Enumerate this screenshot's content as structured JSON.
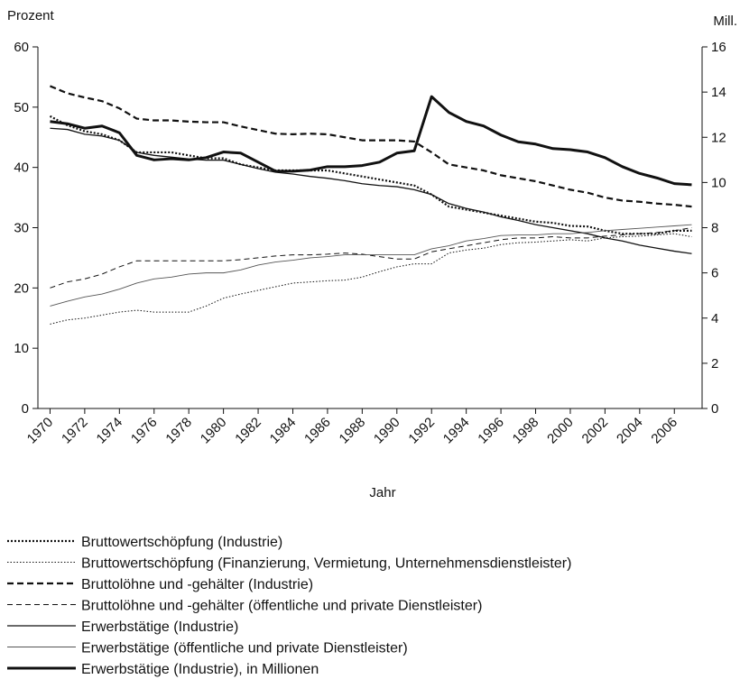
{
  "chart_data": {
    "type": "line",
    "y_label": "Prozent",
    "y2_label": "Mill.",
    "x_label": "Jahr",
    "x": [
      1970,
      1971,
      1972,
      1973,
      1974,
      1975,
      1976,
      1977,
      1978,
      1979,
      1980,
      1981,
      1982,
      1983,
      1984,
      1985,
      1986,
      1987,
      1988,
      1989,
      1990,
      1991,
      1992,
      1993,
      1994,
      1995,
      1996,
      1997,
      1998,
      1999,
      2000,
      2001,
      2002,
      2003,
      2004,
      2005,
      2006,
      2007
    ],
    "xlim": [
      1969.3,
      2007.6
    ],
    "xticks": [
      1970,
      1972,
      1974,
      1976,
      1978,
      1980,
      1982,
      1984,
      1986,
      1988,
      1990,
      1992,
      1994,
      1996,
      1998,
      2000,
      2002,
      2004,
      2006
    ],
    "ylim": [
      0,
      60
    ],
    "yticks": [
      0,
      10,
      20,
      30,
      40,
      50,
      60
    ],
    "y2lim": [
      0,
      16
    ],
    "y2ticks": [
      0,
      2,
      4,
      6,
      8,
      10,
      12,
      14,
      16
    ],
    "series": [
      {
        "name": "Bruttowertschöpfung (Industrie)",
        "color": "#111111",
        "style": "dotted-bold",
        "values": [
          48.5,
          47,
          46,
          45.5,
          44.5,
          42.5,
          42.5,
          42.5,
          42,
          41.5,
          41.5,
          40.5,
          40,
          39.5,
          39.5,
          39.5,
          39.5,
          39,
          38.5,
          38,
          37.5,
          37,
          35.5,
          33.5,
          33,
          32.5,
          32,
          31.5,
          31,
          30.8,
          30.3,
          30.2,
          29.5,
          29,
          29,
          29,
          29.5,
          29.5
        ]
      },
      {
        "name": "Bruttowertschöpfung (Finanzierung, Vermietung, Unternehmensdienstleister)",
        "color": "#111111",
        "style": "dotted",
        "values": [
          14,
          14.7,
          15,
          15.5,
          16,
          16.3,
          16,
          16,
          16,
          17,
          18.3,
          19,
          19.6,
          20.2,
          20.8,
          21,
          21.2,
          21.3,
          21.8,
          22.7,
          23.5,
          24,
          24,
          25.8,
          26.3,
          26.6,
          27.2,
          27.5,
          27.6,
          27.8,
          28,
          27.8,
          28.3,
          28.5,
          28.6,
          28.8,
          29,
          28.5
        ]
      },
      {
        "name": "Bruttolöhne und -gehälter (Industrie)",
        "color": "#111111",
        "style": "dashed-bold",
        "values": [
          53.5,
          52.3,
          51.6,
          51,
          49.8,
          48.1,
          47.8,
          47.8,
          47.6,
          47.5,
          47.5,
          46.8,
          46.2,
          45.6,
          45.5,
          45.6,
          45.5,
          45,
          44.5,
          44.5,
          44.5,
          44.3,
          42.5,
          40.5,
          40,
          39.5,
          38.7,
          38.2,
          37.7,
          37,
          36.3,
          35.8,
          35,
          34.5,
          34.3,
          34,
          33.8,
          33.5
        ]
      },
      {
        "name": "Bruttolöhne und -gehälter (öffentliche und private Dienstleister)",
        "color": "#111111",
        "style": "dashed",
        "values": [
          20,
          21,
          21.5,
          22.3,
          23.5,
          24.5,
          24.5,
          24.5,
          24.5,
          24.5,
          24.5,
          24.7,
          25,
          25.3,
          25.5,
          25.5,
          25.6,
          25.8,
          25.6,
          25.2,
          24.8,
          24.8,
          26,
          26.5,
          27,
          27.5,
          28,
          28.3,
          28.3,
          28.5,
          28.3,
          28.3,
          28.6,
          28.8,
          29,
          29.2,
          29.5,
          30
        ]
      },
      {
        "name": "Erwerbstätige (Industrie)",
        "color": "#111111",
        "style": "solid",
        "values": [
          46.5,
          46.3,
          45.5,
          45.2,
          44.5,
          42.5,
          42,
          41.7,
          41.4,
          41.2,
          41.2,
          40.5,
          39.8,
          39.2,
          38.9,
          38.5,
          38.2,
          37.8,
          37.3,
          37,
          36.8,
          36.3,
          35.5,
          34,
          33.2,
          32.6,
          31.8,
          31.2,
          30.5,
          30,
          29.5,
          29,
          28.3,
          27.8,
          27.1,
          26.6,
          26.1,
          25.7
        ]
      },
      {
        "name": "Erwerbstätige (öffentliche und private Dienstleister)",
        "color": "#555555",
        "style": "solid-thin",
        "values": [
          17,
          17.8,
          18.5,
          19,
          19.8,
          20.8,
          21.5,
          21.8,
          22.3,
          22.5,
          22.5,
          23,
          23.8,
          24.3,
          24.6,
          25,
          25.2,
          25.5,
          25.5,
          25.5,
          25.5,
          25.5,
          26.5,
          27,
          27.8,
          28.2,
          28.7,
          28.8,
          28.8,
          29,
          29,
          29.2,
          29.5,
          29.7,
          29.9,
          30.1,
          30.3,
          30.5
        ]
      },
      {
        "name": "Erwerbstätige (Industrie), in Millionen",
        "color": "#111111",
        "style": "solid-bold",
        "axis": "y2",
        "values": [
          12.7,
          12.6,
          12.4,
          12.5,
          12.2,
          11.2,
          11.0,
          11.05,
          11.0,
          11.1,
          11.35,
          11.3,
          10.9,
          10.5,
          10.5,
          10.55,
          10.7,
          10.7,
          10.75,
          10.9,
          11.3,
          11.4,
          13.8,
          13.1,
          12.7,
          12.5,
          12.1,
          11.8,
          11.7,
          11.5,
          11.45,
          11.35,
          11.1,
          10.7,
          10.4,
          10.2,
          9.95,
          9.9
        ]
      }
    ]
  }
}
